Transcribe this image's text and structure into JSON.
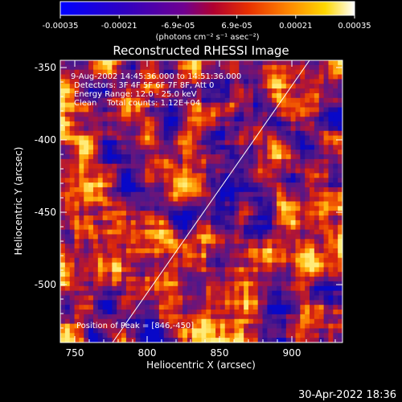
{
  "colorbar": {
    "tick_labels": [
      "-0.00035",
      "-0.00021",
      "-6.9e-05",
      "6.9e-05",
      "0.00021",
      "0.00035"
    ],
    "unit_label": "(photons cm⁻² s⁻¹ asec⁻²)",
    "colors": [
      "#0000ff",
      "#2a00c8",
      "#6a00a8",
      "#b00040",
      "#e02000",
      "#ff6a00",
      "#ffc000",
      "#ffffff"
    ]
  },
  "plot": {
    "title": "Reconstructed RHESSI Image",
    "xlabel": "Heliocentric X (arcsec)",
    "ylabel": "Heliocentric Y (arcsec)",
    "x_ticks": [
      "750",
      "800",
      "850",
      "900"
    ],
    "y_ticks": [
      "-350",
      "-400",
      "-450",
      "-500"
    ],
    "info_lines": [
      "9-Aug-2002 14:45:36.000 to 14:51:36.000",
      "Detectors: 3F 4F 5F 6F 7F 8F, Att 0",
      "Energy Range: 12.0 - 25.0 keV",
      "Clean    Total counts: 1.12E+04"
    ],
    "peak_label": "Position of Peak = [846,-450]",
    "xlim": [
      740,
      935
    ],
    "ylim": [
      -540,
      -345
    ]
  },
  "footer": {
    "timestamp": "30-Apr-2022 18:36"
  }
}
